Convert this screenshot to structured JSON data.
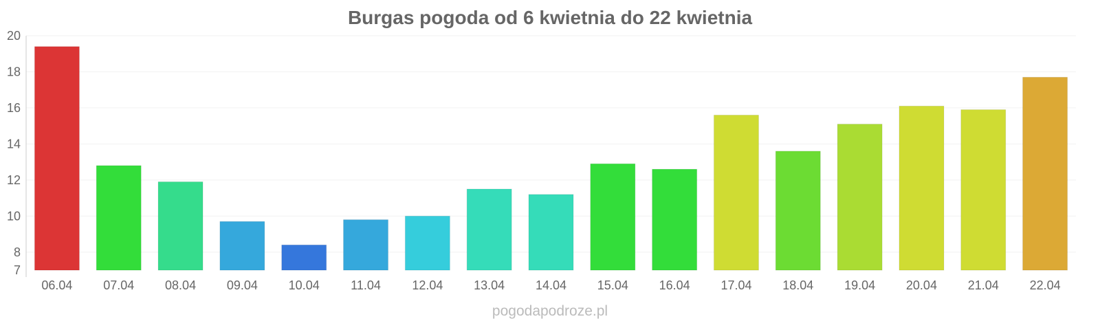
{
  "chart_data": {
    "type": "bar",
    "title": "Burgas pogoda od 6 kwietnia do 22 kwietnia",
    "xlabel": "",
    "ylabel": "",
    "ylim": [
      7,
      20
    ],
    "yticks": [
      7,
      8,
      10,
      12,
      14,
      16,
      18,
      20
    ],
    "grid": true,
    "categories": [
      "06.04",
      "07.04",
      "08.04",
      "09.04",
      "10.04",
      "11.04",
      "12.04",
      "13.04",
      "14.04",
      "15.04",
      "16.04",
      "17.04",
      "18.04",
      "19.04",
      "20.04",
      "21.04",
      "22.04"
    ],
    "values": [
      19.4,
      12.8,
      11.9,
      9.7,
      8.4,
      9.8,
      10.0,
      11.5,
      11.2,
      12.9,
      12.6,
      15.6,
      13.6,
      15.1,
      16.1,
      15.9,
      17.7
    ],
    "colors": [
      "#dc3535",
      "#33dd3a",
      "#35dc8c",
      "#35a8dc",
      "#3577dc",
      "#35a8dc",
      "#35cddc",
      "#35dcb9",
      "#35dcb9",
      "#33dd3a",
      "#33dd3a",
      "#cfdc33",
      "#6cdc33",
      "#aadc33",
      "#cfdc33",
      "#cfdc33",
      "#dca935"
    ]
  },
  "footer": "pogodapodroze.pl"
}
